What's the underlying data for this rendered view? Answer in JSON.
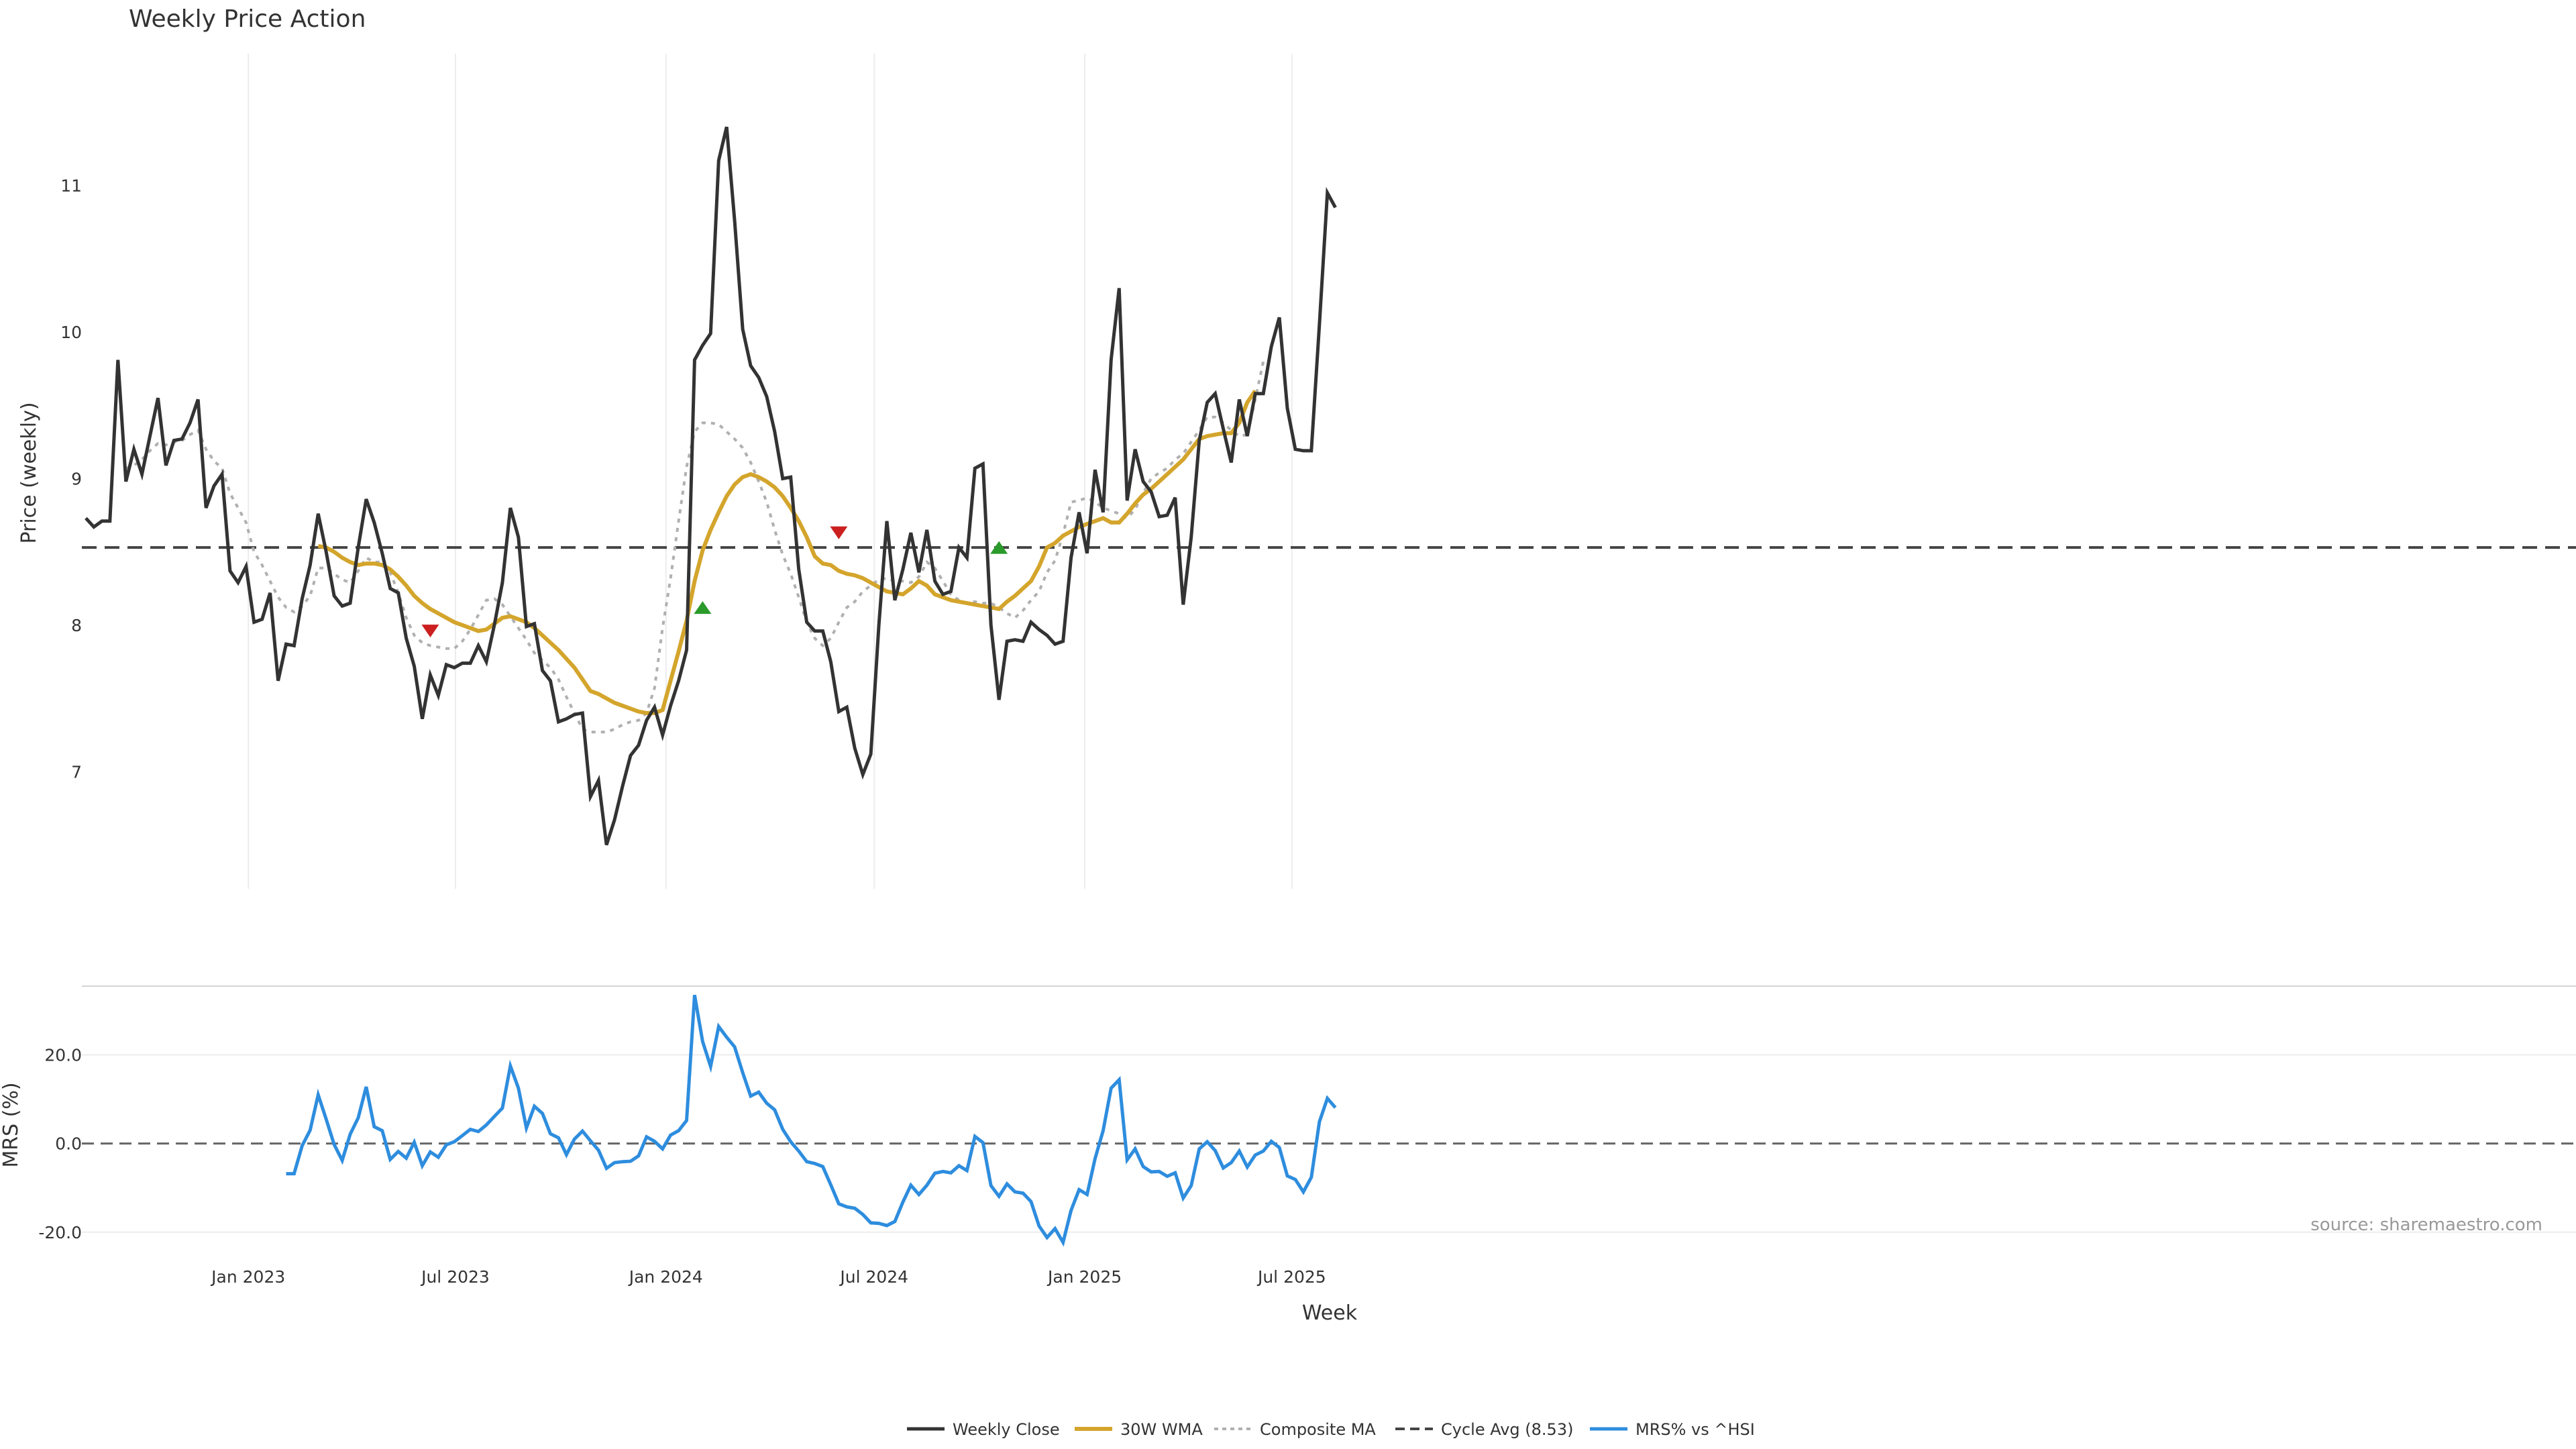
{
  "chart_data": {
    "type": "line",
    "title": "Weekly Price Action",
    "source": "source: sharemaestro.com",
    "xlabel": "Week",
    "x_ticks": [
      "Jan 2023",
      "Jul 2023",
      "Jan 2024",
      "Jul 2024",
      "Jan 2025",
      "Jul 2025"
    ],
    "x_tick_dates": [
      "2023-01-01",
      "2023-07-01",
      "2024-01-01",
      "2024-07-01",
      "2025-01-01",
      "2025-07-01"
    ],
    "start_date": "2022-08-12",
    "top_panel": {
      "ylabel": "Price (weekly)",
      "ylim": [
        6.2,
        11.9
      ],
      "yticks": [
        7,
        8,
        9,
        10,
        11
      ],
      "yticks_labels": [
        "7",
        "8",
        "9",
        "10",
        "11"
      ],
      "cycle_avg": 8.53
    },
    "bottom_panel": {
      "ylabel": "MRS (%)",
      "ylim": [
        -22,
        34
      ],
      "yticks": [
        20,
        0,
        -20
      ],
      "yticks_labels": [
        "20.0",
        "0.0",
        "-20.0"
      ]
    },
    "series": [
      {
        "name": "Weekly Close",
        "color": "#333333",
        "values": [
          8.73,
          8.67,
          8.71,
          8.71,
          9.81,
          8.98,
          9.2,
          9.03,
          9.29,
          9.55,
          9.09,
          9.26,
          9.27,
          9.38,
          9.54,
          8.8,
          8.95,
          9.03,
          8.37,
          8.29,
          8.4,
          8.02,
          8.04,
          8.22,
          7.62,
          7.87,
          7.86,
          8.18,
          8.41,
          8.76,
          8.5,
          8.2,
          8.13,
          8.15,
          8.53,
          8.86,
          8.7,
          8.49,
          8.25,
          8.22,
          7.91,
          7.72,
          7.36,
          7.66,
          7.52,
          7.73,
          7.71,
          7.74,
          7.74,
          7.86,
          7.75,
          8.0,
          8.29,
          8.8,
          8.6,
          7.99,
          8.01,
          7.69,
          7.62,
          7.34,
          7.36,
          7.39,
          7.4,
          6.83,
          6.94,
          6.5,
          6.67,
          6.9,
          7.11,
          7.18,
          7.35,
          7.44,
          7.25,
          7.45,
          7.62,
          7.83,
          9.81,
          9.91,
          9.99,
          11.17,
          11.4,
          10.76,
          10.02,
          9.77,
          9.69,
          9.56,
          9.32,
          9.0,
          9.01,
          8.38,
          8.02,
          7.96,
          7.96,
          7.75,
          7.41,
          7.44,
          7.16,
          6.98,
          7.12,
          8.0,
          8.71,
          8.17,
          8.38,
          8.63,
          8.36,
          8.65,
          8.3,
          8.21,
          8.23,
          8.53,
          8.46,
          9.07,
          9.1,
          8.0,
          7.49,
          7.89,
          7.9,
          7.89,
          8.02,
          7.97,
          7.93,
          7.87,
          7.89,
          8.46,
          8.77,
          8.49,
          9.06,
          8.77,
          9.81,
          10.3,
          8.85,
          9.2,
          8.98,
          8.91,
          8.74,
          8.75,
          8.87,
          8.14,
          8.6,
          9.26,
          9.52,
          9.58,
          9.34,
          9.11,
          9.54,
          9.29,
          9.58,
          9.58,
          9.9,
          10.1,
          9.48,
          9.2,
          9.19,
          9.19,
          10.05,
          10.95,
          10.85
        ]
      },
      {
        "name": "30W WMA",
        "color": "#D4A52C",
        "start_index": 29,
        "values": [
          8.54,
          8.53,
          8.5,
          8.46,
          8.43,
          8.41,
          8.42,
          8.42,
          8.41,
          8.38,
          8.33,
          8.27,
          8.2,
          8.15,
          8.11,
          8.08,
          8.05,
          8.02,
          8.0,
          7.98,
          7.96,
          7.97,
          8.01,
          8.05,
          8.06,
          8.04,
          8.02,
          7.98,
          7.93,
          7.88,
          7.83,
          7.77,
          7.71,
          7.63,
          7.55,
          7.53,
          7.5,
          7.47,
          7.45,
          7.43,
          7.41,
          7.4,
          7.4,
          7.42,
          7.62,
          7.82,
          8.03,
          8.3,
          8.51,
          8.65,
          8.77,
          8.88,
          8.96,
          9.01,
          9.03,
          9.01,
          8.98,
          8.94,
          8.88,
          8.8,
          8.71,
          8.6,
          8.47,
          8.42,
          8.41,
          8.37,
          8.35,
          8.34,
          8.32,
          8.29,
          8.26,
          8.23,
          8.22,
          8.21,
          8.25,
          8.3,
          8.27,
          8.21,
          8.19,
          8.17,
          8.16,
          8.15,
          8.14,
          8.13,
          8.12,
          8.11,
          8.16,
          8.2,
          8.25,
          8.3,
          8.4,
          8.53,
          8.56,
          8.61,
          8.64,
          8.67,
          8.69,
          8.71,
          8.73,
          8.7,
          8.7,
          8.76,
          8.83,
          8.89,
          8.93,
          8.98,
          9.03,
          9.08,
          9.13,
          9.2,
          9.27,
          9.29,
          9.3,
          9.31,
          9.31,
          9.38,
          9.52,
          9.6
        ]
      },
      {
        "name": "Composite MA",
        "color": "#b0b0b0",
        "start_index": 5,
        "values": [
          9.07,
          9.09,
          9.13,
          9.19,
          9.24,
          9.23,
          9.25,
          9.26,
          9.3,
          9.33,
          9.2,
          9.12,
          9.07,
          8.9,
          8.8,
          8.7,
          8.5,
          8.41,
          8.3,
          8.19,
          8.12,
          8.09,
          8.13,
          8.2,
          8.39,
          8.39,
          8.35,
          8.31,
          8.29,
          8.37,
          8.46,
          8.43,
          8.43,
          8.36,
          8.22,
          8.05,
          7.93,
          7.88,
          7.86,
          7.85,
          7.84,
          7.84,
          7.89,
          7.97,
          8.07,
          8.17,
          8.18,
          8.14,
          8.06,
          7.98,
          7.9,
          7.81,
          7.76,
          7.71,
          7.63,
          7.51,
          7.4,
          7.29,
          7.27,
          7.27,
          7.27,
          7.29,
          7.32,
          7.34,
          7.35,
          7.4,
          7.57,
          7.98,
          8.32,
          8.71,
          9.08,
          9.32,
          9.38,
          9.38,
          9.37,
          9.32,
          9.27,
          9.21,
          9.11,
          8.98,
          8.84,
          8.65,
          8.48,
          8.35,
          8.19,
          8.02,
          7.91,
          7.86,
          7.91,
          8.02,
          8.12,
          8.16,
          8.23,
          8.27,
          8.31,
          8.32,
          8.3,
          8.3,
          8.29,
          8.33,
          8.43,
          8.39,
          8.3,
          8.21,
          8.17,
          8.15,
          8.16,
          8.15,
          8.15,
          8.12,
          8.08,
          8.05,
          8.1,
          8.17,
          8.23,
          8.36,
          8.44,
          8.62,
          8.84,
          8.85,
          8.87,
          8.84,
          8.8,
          8.78,
          8.76,
          8.73,
          8.79,
          8.9,
          9.0,
          9.04,
          9.07,
          9.13,
          9.17,
          9.25,
          9.33,
          9.42,
          9.42,
          9.38,
          9.33,
          9.29,
          9.3,
          9.54,
          9.8
        ]
      },
      {
        "name": "Cycle Avg (8.53)",
        "color": "#444444",
        "value": 8.53
      },
      {
        "name": "MRS% vs ^HSI",
        "color": "#2E8DDE",
        "start_index": 25,
        "values": [
          -6.8,
          -6.8,
          -0.5,
          3.0,
          11.0,
          5.5,
          -0.2,
          -3.8,
          2.1,
          5.8,
          12.8,
          3.8,
          2.9,
          -3.6,
          -1.8,
          -3.3,
          0.3,
          -5.0,
          -1.9,
          -3.1,
          -0.3,
          0.4,
          1.8,
          3.2,
          2.7,
          4.2,
          6.1,
          8.0,
          17.5,
          12.5,
          3.5,
          8.4,
          6.8,
          2.2,
          1.3,
          -2.5,
          1.0,
          2.8,
          0.6,
          -1.5,
          -5.6,
          -4.3,
          -4.1,
          -4.0,
          -2.8,
          1.5,
          0.5,
          -1.2,
          1.9,
          2.9,
          5.2,
          33.5,
          23.0,
          17.4,
          26.4,
          24.0,
          21.8,
          16.0,
          10.7,
          11.6,
          9.1,
          7.6,
          3.2,
          0.4,
          -1.7,
          -4.1,
          -4.5,
          -5.2,
          -9.3,
          -13.6,
          -14.3,
          -14.6,
          -16.0,
          -17.9,
          -18.0,
          -18.5,
          -17.6,
          -13.2,
          -9.4,
          -11.5,
          -9.4,
          -6.7,
          -6.3,
          -6.6,
          -5.0,
          -6.1,
          1.6,
          0.2,
          -9.5,
          -11.9,
          -9.1,
          -10.9,
          -11.2,
          -13.1,
          -18.6,
          -21.2,
          -19.2,
          -22.3,
          -15.1,
          -10.4,
          -11.5,
          -3.4,
          2.9,
          12.5,
          14.4,
          -3.7,
          -1.2,
          -5.2,
          -6.4,
          -6.3,
          -7.4,
          -6.6,
          -12.3,
          -9.5,
          -1.2,
          0.4,
          -1.6,
          -5.5,
          -4.3,
          -1.7,
          -5.3,
          -2.6,
          -1.7,
          0.5,
          -0.9,
          -7.3,
          -8.1,
          -10.9,
          -7.6,
          4.9,
          10.2,
          8.1
        ]
      }
    ],
    "signals": [
      {
        "type": "sell",
        "index": 43,
        "price": 7.96,
        "color": "#CC1F1F"
      },
      {
        "type": "buy",
        "index": 77,
        "price": 8.12,
        "color": "#2A9A2A"
      },
      {
        "type": "sell",
        "index": 94,
        "price": 8.63,
        "color": "#CC1F1F"
      },
      {
        "type": "buy",
        "index": 114,
        "price": 8.53,
        "color": "#2A9A2A"
      }
    ],
    "legend": {
      "placement": "bottom-center",
      "items": [
        "Weekly Close",
        "30W WMA",
        "Composite MA",
        "Cycle Avg (8.53)",
        "MRS% vs ^HSI"
      ]
    }
  }
}
